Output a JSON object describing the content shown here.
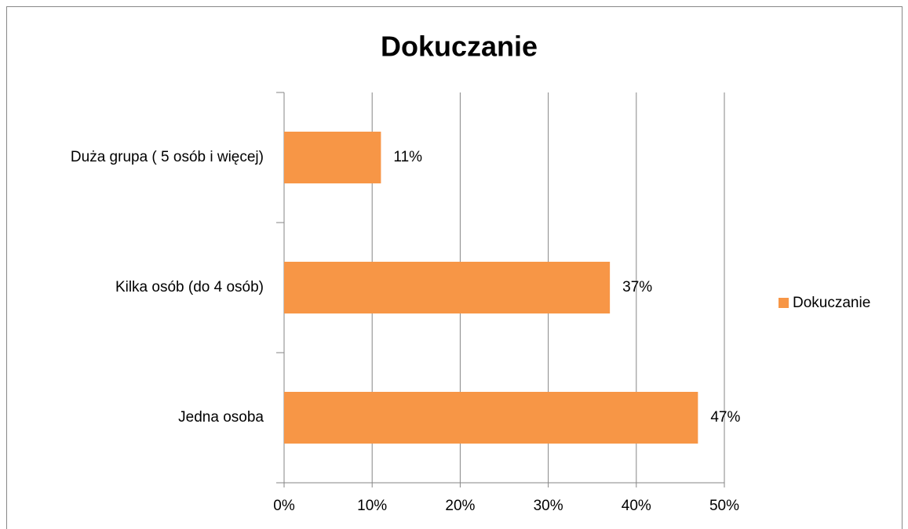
{
  "chart_data": {
    "type": "bar",
    "orientation": "horizontal",
    "title": "Dokuczanie",
    "categories": [
      "Duża grupa ( 5 osób i więcej)",
      "Kilka osób (do 4 osób)",
      "Jedna osoba"
    ],
    "series": [
      {
        "name": "Dokuczanie",
        "color": "#f79646",
        "values": [
          11,
          37,
          47
        ],
        "value_labels": [
          "11%",
          "37%",
          "47%"
        ]
      }
    ],
    "xlim": [
      0,
      50
    ],
    "xticks": [
      {
        "value": 0,
        "label": "0%"
      },
      {
        "value": 10,
        "label": "10%"
      },
      {
        "value": 20,
        "label": "20%"
      },
      {
        "value": 30,
        "label": "30%"
      },
      {
        "value": 40,
        "label": "40%"
      },
      {
        "value": 50,
        "label": "50%"
      }
    ],
    "grid": true,
    "legend": "right"
  }
}
